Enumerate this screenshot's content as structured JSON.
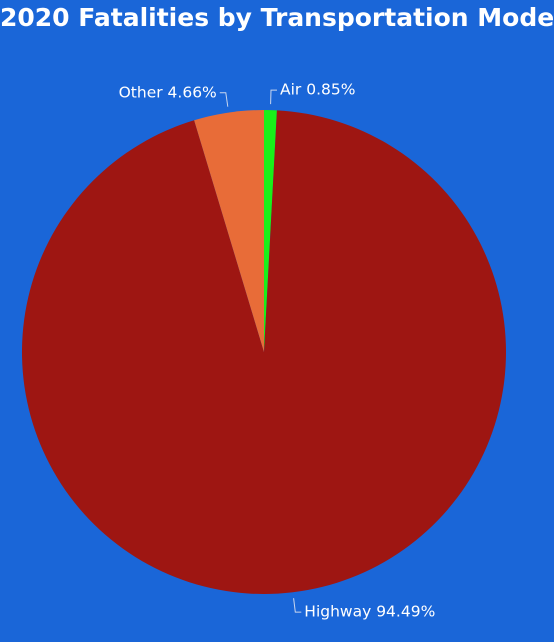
{
  "chart_data": {
    "type": "pie",
    "title": "2020 Fatalities by Transportation Mode",
    "slices": [
      {
        "name": "Air",
        "value": 0.85,
        "label": "Air 0.85%",
        "color": "#19f019"
      },
      {
        "name": "Highway",
        "value": 94.49,
        "label": "Highway 94.49%",
        "color": "#9e1612"
      },
      {
        "name": "Other",
        "value": 4.66,
        "label": "Other 4.66%",
        "color": "#e86c38"
      }
    ],
    "start_angle": "12 o'clock",
    "direction": "clockwise",
    "legend": "none",
    "data_labels": "outside with leader lines"
  },
  "colors": {
    "background": "#1a66d8",
    "title_text": "#ffffff",
    "label_text": "#ffffff"
  }
}
